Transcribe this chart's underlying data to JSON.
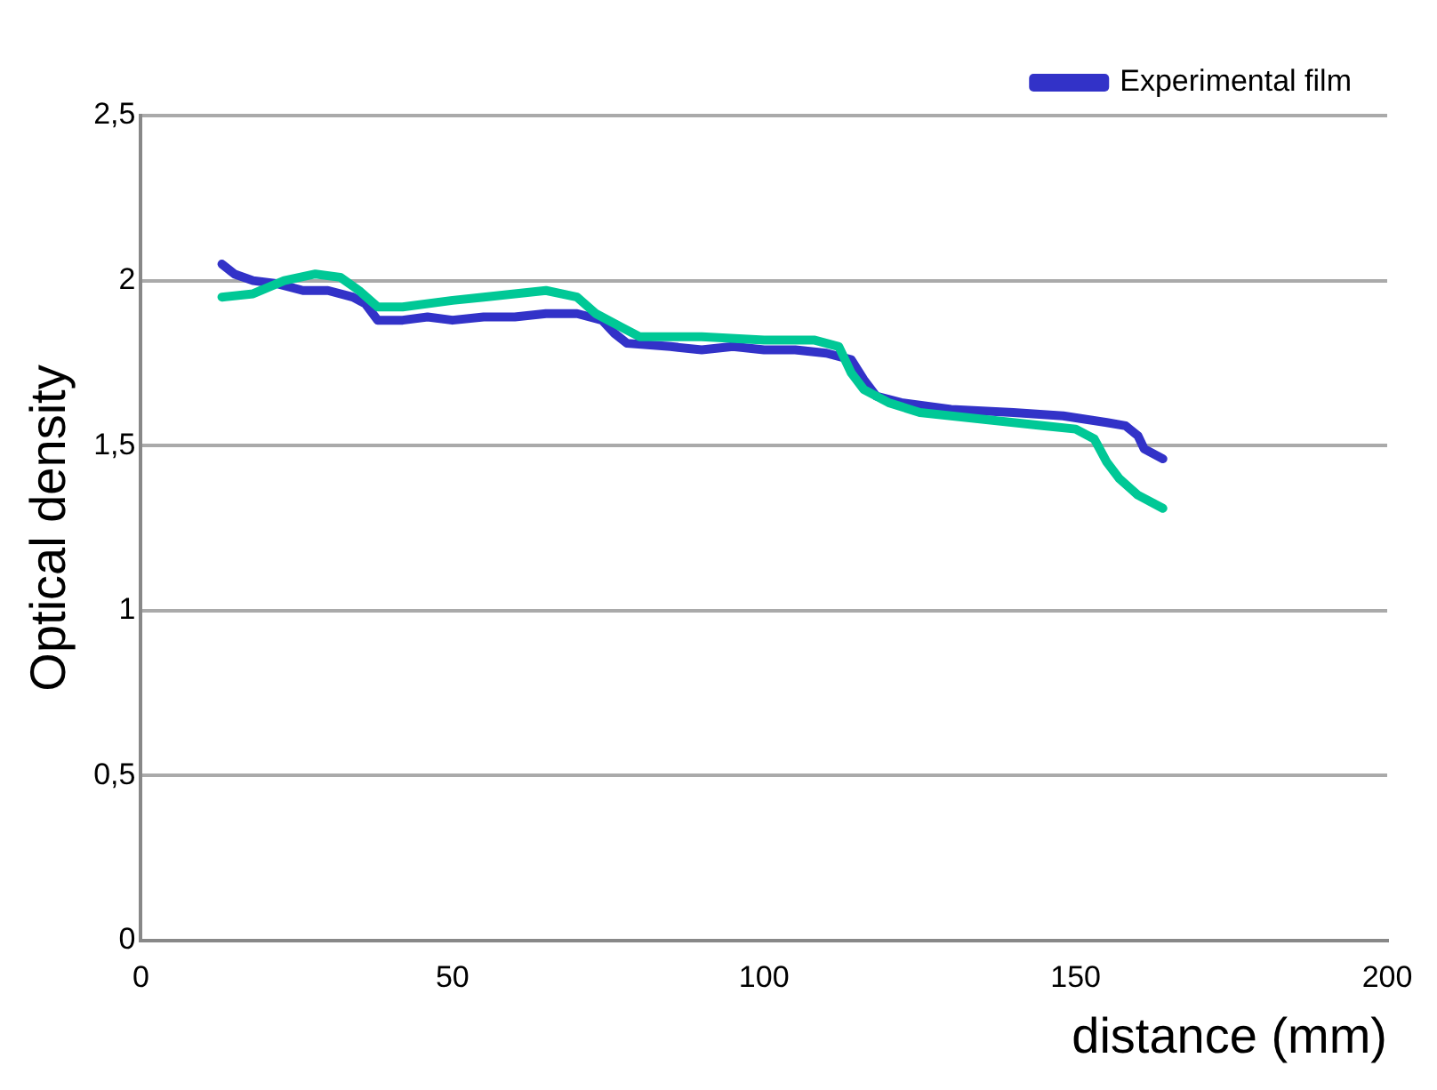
{
  "chart_data": {
    "type": "line",
    "xlabel": "distance (mm)",
    "ylabel": "Optical density",
    "xlim": [
      0,
      200
    ],
    "xticks": [
      0,
      50,
      100,
      150,
      200
    ],
    "ylim": [
      0,
      2.5
    ],
    "yticks": [
      {
        "value": 0,
        "label": "0"
      },
      {
        "value": 0.5,
        "label": "0,5"
      },
      {
        "value": 1,
        "label": "1"
      },
      {
        "value": 1.5,
        "label": "1,5"
      },
      {
        "value": 2,
        "label": "2"
      },
      {
        "value": 2.5,
        "label": "2,5"
      }
    ],
    "grid": "y",
    "legend": "top right",
    "marker": "none",
    "line_style": "solid",
    "series": [
      {
        "color": "#00c896",
        "x": [
          13,
          18,
          23,
          28,
          32,
          35,
          38,
          42,
          50,
          55,
          60,
          65,
          70,
          73,
          77,
          80,
          90,
          100,
          108,
          112,
          114,
          116,
          120,
          125,
          135,
          145,
          150,
          153,
          155,
          157,
          160,
          164
        ],
        "values": [
          1.95,
          1.96,
          2.0,
          2.02,
          2.01,
          1.97,
          1.92,
          1.92,
          1.94,
          1.95,
          1.96,
          1.97,
          1.95,
          1.9,
          1.86,
          1.83,
          1.83,
          1.82,
          1.82,
          1.8,
          1.72,
          1.67,
          1.63,
          1.6,
          1.58,
          1.56,
          1.55,
          1.52,
          1.45,
          1.4,
          1.35,
          1.31
        ]
      },
      {
        "name": "Experimental film",
        "color": "#3232c8",
        "x": [
          13,
          15,
          18,
          22,
          26,
          30,
          34,
          36,
          38,
          42,
          46,
          50,
          55,
          60,
          65,
          70,
          74,
          76,
          78,
          85,
          90,
          95,
          100,
          105,
          110,
          114,
          116,
          118,
          122,
          130,
          140,
          148,
          155,
          158,
          160,
          161,
          163,
          164
        ],
        "values": [
          2.05,
          2.02,
          2.0,
          1.99,
          1.97,
          1.97,
          1.95,
          1.93,
          1.88,
          1.88,
          1.89,
          1.88,
          1.89,
          1.89,
          1.9,
          1.9,
          1.88,
          1.84,
          1.81,
          1.8,
          1.79,
          1.8,
          1.79,
          1.79,
          1.78,
          1.76,
          1.7,
          1.65,
          1.63,
          1.61,
          1.6,
          1.59,
          1.57,
          1.56,
          1.53,
          1.49,
          1.47,
          1.46
        ]
      }
    ]
  }
}
